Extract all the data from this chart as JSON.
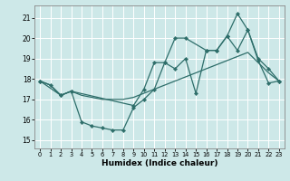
{
  "xlabel": "Humidex (Indice chaleur)",
  "xlim": [
    -0.5,
    23.5
  ],
  "ylim": [
    14.6,
    21.6
  ],
  "yticks": [
    15,
    16,
    17,
    18,
    19,
    20,
    21
  ],
  "xticks": [
    0,
    1,
    2,
    3,
    4,
    5,
    6,
    7,
    8,
    9,
    10,
    11,
    12,
    13,
    14,
    15,
    16,
    17,
    18,
    19,
    20,
    21,
    22,
    23
  ],
  "bg_color": "#cde8e8",
  "grid_color": "#ffffff",
  "line_color": "#2e6e6a",
  "line1": {
    "x": [
      0,
      1,
      2,
      3,
      4,
      5,
      6,
      7,
      8,
      9,
      10,
      11,
      12,
      13,
      14,
      15,
      16,
      17,
      18,
      19,
      20,
      21,
      22,
      23
    ],
    "y": [
      17.9,
      17.7,
      17.2,
      17.4,
      15.9,
      15.7,
      15.6,
      15.5,
      15.5,
      16.6,
      17.0,
      17.5,
      18.8,
      18.5,
      19.0,
      17.3,
      19.4,
      19.4,
      20.1,
      19.4,
      20.4,
      18.9,
      17.8,
      17.9
    ]
  },
  "line2": {
    "x": [
      0,
      1,
      2,
      3,
      4,
      5,
      6,
      7,
      8,
      9,
      10,
      11,
      12,
      13,
      14,
      15,
      16,
      17,
      18,
      19,
      20,
      21,
      22,
      23
    ],
    "y": [
      17.9,
      17.7,
      17.2,
      17.4,
      17.2,
      17.1,
      17.0,
      17.0,
      17.0,
      17.1,
      17.3,
      17.5,
      17.7,
      17.9,
      18.1,
      18.3,
      18.5,
      18.7,
      18.9,
      19.1,
      19.3,
      18.8,
      18.3,
      17.9
    ]
  },
  "line3": {
    "x": [
      0,
      2,
      3,
      9,
      10,
      11,
      12,
      13,
      14,
      16,
      17,
      18,
      19,
      20,
      21,
      22,
      23
    ],
    "y": [
      17.9,
      17.2,
      17.4,
      16.7,
      17.5,
      18.8,
      18.8,
      20.0,
      20.0,
      19.4,
      19.4,
      20.1,
      21.2,
      20.4,
      19.0,
      18.5,
      17.9
    ]
  }
}
